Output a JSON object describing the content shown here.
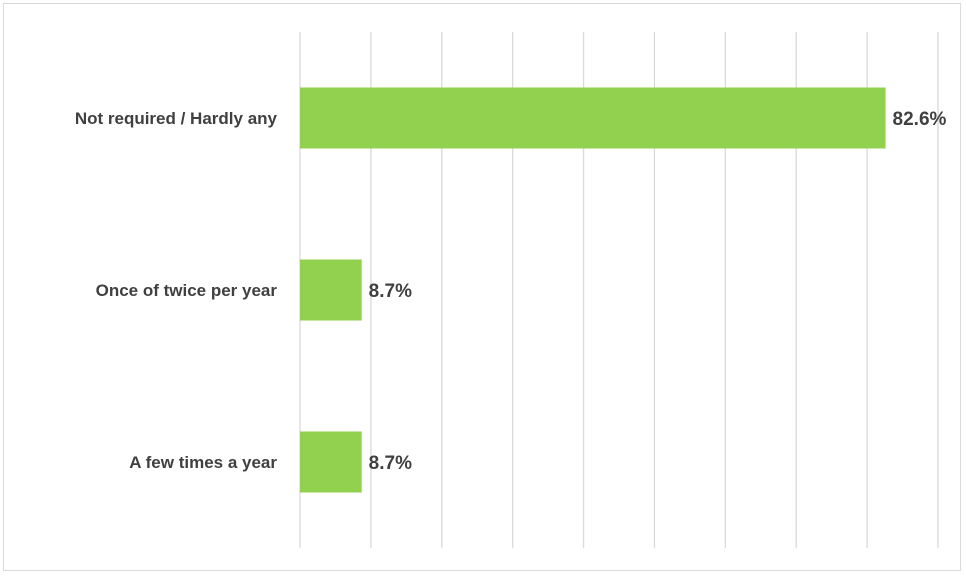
{
  "chart_data": {
    "type": "bar",
    "orientation": "horizontal",
    "categories": [
      "Not required / Hardly any",
      "Once of twice per year",
      "A few times a year"
    ],
    "values": [
      82.6,
      8.7,
      8.7
    ],
    "data_labels": [
      "82.6%",
      "8.7%",
      "8.7%"
    ],
    "xlim": [
      0,
      90
    ],
    "grid": true,
    "legend": "none",
    "bar_color": "#92d050",
    "gridline_color": "#d9d9d9",
    "label_color": "#404040"
  }
}
